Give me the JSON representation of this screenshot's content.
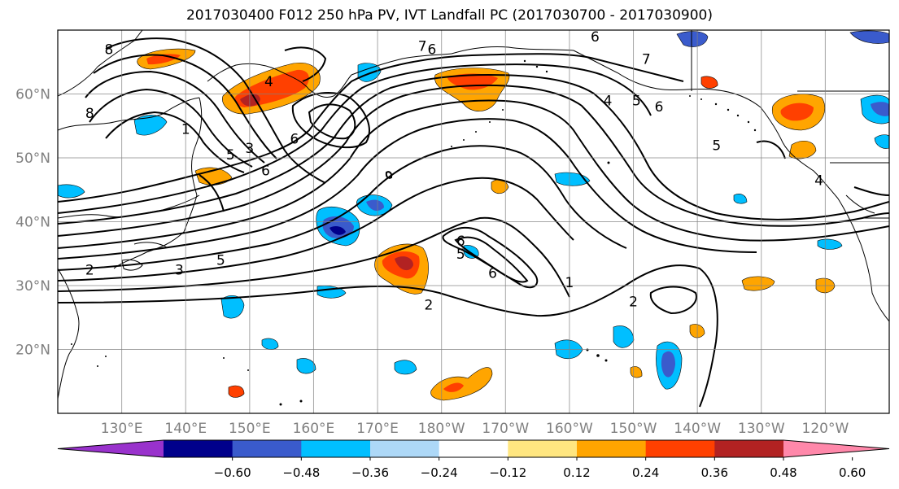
{
  "title": "2017030400 F012 250 hPa PV, IVT Landfall PC (2017030700 - 2017030900)",
  "chart_data": {
    "type": "heatmap",
    "subtype": "map with filled contours and line contours",
    "projection": "lon/lat (Pacific-centred)",
    "lon_range": [
      120,
      250
    ],
    "lat_range": [
      10,
      70
    ],
    "grid": true,
    "x_ticks": [
      "130°E",
      "140°E",
      "150°E",
      "160°E",
      "170°E",
      "180°W",
      "170°W",
      "160°W",
      "150°W",
      "140°W",
      "130°W",
      "120°W"
    ],
    "x_tick_values": [
      130,
      140,
      150,
      160,
      170,
      180,
      190,
      200,
      210,
      220,
      230,
      240
    ],
    "y_ticks": [
      "20°N",
      "30°N",
      "40°N",
      "50°N",
      "60°N"
    ],
    "y_tick_values": [
      20,
      30,
      40,
      50,
      60
    ],
    "colorbar": {
      "orientation": "horizontal",
      "extend": "both",
      "tick_labels": [
        "−0.60",
        "−0.48",
        "−0.36",
        "−0.24",
        "−0.12",
        "0.12",
        "0.24",
        "0.36",
        "0.48",
        "0.60"
      ],
      "colors": [
        "#9932cc",
        "#00008b",
        "#3a5bcc",
        "#00bfff",
        "#add8f7",
        "#ffffff",
        "#ffe680",
        "#ffa500",
        "#ff4000",
        "#b22222",
        "#ff88aa"
      ]
    },
    "line_contour_labels": [
      {
        "text": "8",
        "lon": 128,
        "lat": 67
      },
      {
        "text": "8",
        "lon": 125,
        "lat": 57
      },
      {
        "text": "1",
        "lon": 140,
        "lat": 54.5
      },
      {
        "text": "5",
        "lon": 147,
        "lat": 50.5
      },
      {
        "text": "3",
        "lon": 150,
        "lat": 51.5
      },
      {
        "text": "6",
        "lon": 152.5,
        "lat": 48
      },
      {
        "text": "6",
        "lon": 157,
        "lat": 53
      },
      {
        "text": "4",
        "lon": 153,
        "lat": 62
      },
      {
        "text": "2",
        "lon": 125,
        "lat": 32.5
      },
      {
        "text": "3",
        "lon": 139,
        "lat": 32.5
      },
      {
        "text": "5",
        "lon": 145.5,
        "lat": 34
      },
      {
        "text": "7",
        "lon": 177,
        "lat": 67.5
      },
      {
        "text": "6",
        "lon": 178.5,
        "lat": 67
      },
      {
        "text": "6",
        "lon": 204,
        "lat": 69
      },
      {
        "text": "7",
        "lon": 212,
        "lat": 65.5
      },
      {
        "text": "4",
        "lon": 206,
        "lat": 59
      },
      {
        "text": "6",
        "lon": 214,
        "lat": 58
      },
      {
        "text": "5",
        "lon": 210.5,
        "lat": 59
      },
      {
        "text": "5",
        "lon": 223,
        "lat": 52
      },
      {
        "text": "4",
        "lon": 239,
        "lat": 46.5
      },
      {
        "text": "6",
        "lon": 183,
        "lat": 37
      },
      {
        "text": "5",
        "lon": 183,
        "lat": 35
      },
      {
        "text": "6",
        "lon": 188,
        "lat": 32
      },
      {
        "text": "1",
        "lon": 200,
        "lat": 30.5
      },
      {
        "text": "2",
        "lon": 178,
        "lat": 27
      },
      {
        "text": "2",
        "lon": 210,
        "lat": 27.5
      }
    ]
  }
}
